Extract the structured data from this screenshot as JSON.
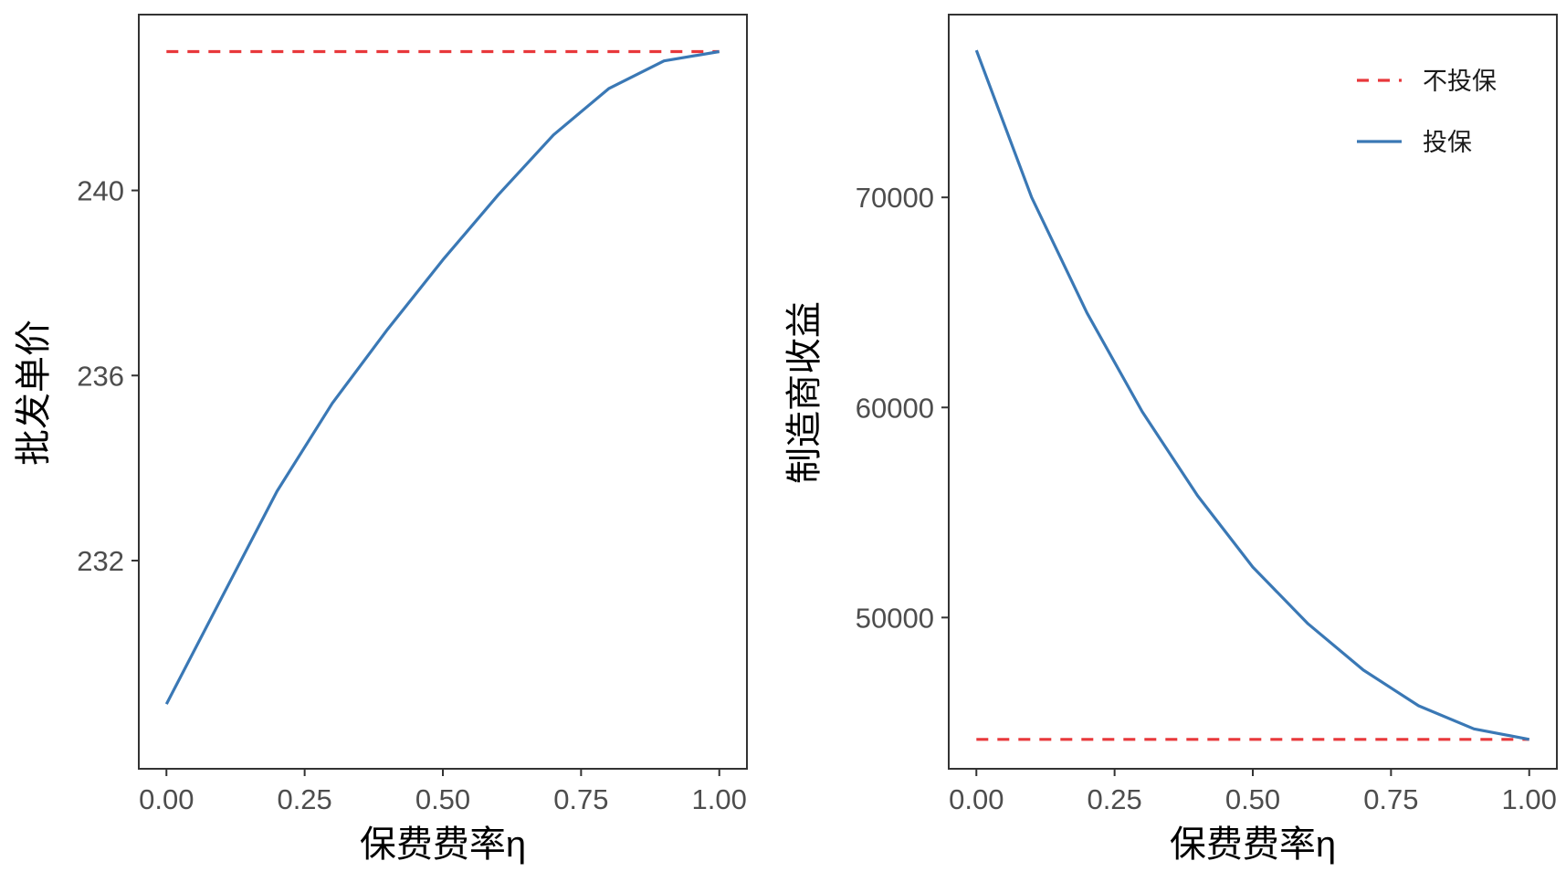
{
  "colors": {
    "no_insurance": "#e8383b",
    "insurance": "#3a78b5",
    "axis": "#333333",
    "tick_text": "#4d4d4d"
  },
  "legend": {
    "items": [
      {
        "label": "不投保",
        "style": "dashed",
        "color": "#e8383b"
      },
      {
        "label": "投保",
        "style": "solid",
        "color": "#3a78b5"
      }
    ],
    "placement": "top-right"
  },
  "chart_data": [
    {
      "type": "line",
      "xlabel": "保费费率η",
      "ylabel": "批发单价",
      "xlim": [
        -0.05,
        1.05
      ],
      "ylim": [
        227.5,
        243.8
      ],
      "x_ticks": [
        0,
        0.25,
        0.5,
        0.75,
        1
      ],
      "x_tick_labels": [
        "0.00",
        "0.25",
        "0.50",
        "0.75",
        "1.00"
      ],
      "y_ticks": [
        232,
        236,
        240
      ],
      "y_tick_labels": [
        "232",
        "236",
        "240"
      ],
      "grid": false,
      "series": [
        {
          "name": "不投保",
          "style": "dashed",
          "color": "#e8383b",
          "x": [
            0,
            1
          ],
          "y": [
            243.0,
            243.0
          ]
        },
        {
          "name": "投保",
          "style": "solid",
          "color": "#3a78b5",
          "x": [
            0,
            0.1,
            0.2,
            0.3,
            0.4,
            0.5,
            0.6,
            0.7,
            0.8,
            0.9,
            1.0
          ],
          "y": [
            228.9,
            231.2,
            233.5,
            235.4,
            237.0,
            238.5,
            239.9,
            241.2,
            242.2,
            242.8,
            243.0
          ]
        }
      ]
    },
    {
      "type": "line",
      "xlabel": "保费费率η",
      "ylabel": "制造商收益",
      "xlim": [
        -0.05,
        1.05
      ],
      "ylim": [
        42800,
        78700
      ],
      "x_ticks": [
        0,
        0.25,
        0.5,
        0.75,
        1
      ],
      "x_tick_labels": [
        "0.00",
        "0.25",
        "0.50",
        "0.75",
        "1.00"
      ],
      "y_ticks": [
        50000,
        60000,
        70000
      ],
      "y_tick_labels": [
        "50000",
        "60000",
        "70000"
      ],
      "grid": false,
      "series": [
        {
          "name": "不投保",
          "style": "dashed",
          "color": "#e8383b",
          "x": [
            0,
            1
          ],
          "y": [
            44200,
            44200
          ]
        },
        {
          "name": "投保",
          "style": "solid",
          "color": "#3a78b5",
          "x": [
            0,
            0.1,
            0.2,
            0.3,
            0.4,
            0.5,
            0.6,
            0.7,
            0.8,
            0.9,
            1.0
          ],
          "y": [
            77000,
            70000,
            64500,
            59800,
            55800,
            52400,
            49700,
            47500,
            45800,
            44700,
            44200
          ]
        }
      ]
    }
  ]
}
